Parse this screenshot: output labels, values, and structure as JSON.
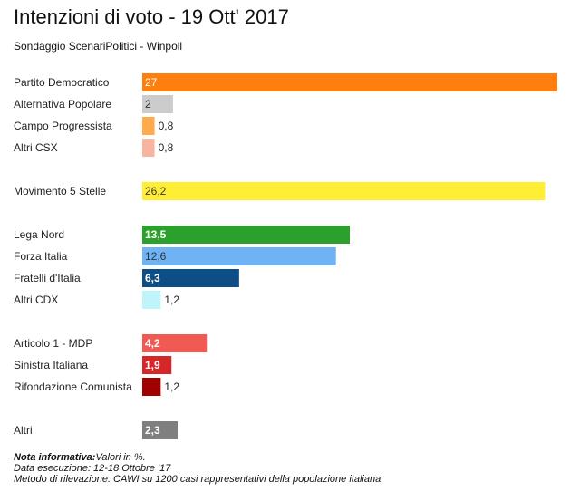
{
  "header": {
    "title": "Intenzioni di voto - 19 Ott' 2017",
    "subtitle": "Sondaggio ScenariPolitici - Winpoll"
  },
  "chart_data": {
    "type": "bar",
    "orientation": "horizontal",
    "title": "Intenzioni di voto - 19 Ott' 2017",
    "xlim": [
      0,
      27
    ],
    "grid": false,
    "legend": "none",
    "bars": [
      {
        "category": "Partito Democratico",
        "value": 27,
        "label": "27",
        "color": "#ff7f0e",
        "group": 0,
        "label_inside": true,
        "label_color": "#ffffff",
        "label_bold": false
      },
      {
        "category": "Alternativa Popolare",
        "value": 2,
        "label": "2",
        "color": "#cccccc",
        "group": 0,
        "label_inside": true,
        "label_color": "#333333",
        "label_bold": false
      },
      {
        "category": "Campo Progressista",
        "value": 0.8,
        "label": "0,8",
        "color": "#ffaa4c",
        "group": 0,
        "label_inside": false,
        "label_color": "#222222",
        "label_bold": false
      },
      {
        "category": "Altri CSX",
        "value": 0.8,
        "label": "0,8",
        "color": "#f9b4a0",
        "group": 0,
        "label_inside": false,
        "label_color": "#222222",
        "label_bold": false
      },
      {
        "category": "Movimento 5 Stelle",
        "value": 26.2,
        "label": "26,2",
        "color": "#ffee33",
        "group": 1,
        "label_inside": true,
        "label_color": "#333333",
        "label_bold": false
      },
      {
        "category": "Lega Nord",
        "value": 13.5,
        "label": "13,5",
        "color": "#2ca02c",
        "group": 2,
        "label_inside": true,
        "label_color": "#ffffff",
        "label_bold": true
      },
      {
        "category": "Forza Italia",
        "value": 12.6,
        "label": "12,6",
        "color": "#6fb3f5",
        "group": 2,
        "label_inside": true,
        "label_color": "#333333",
        "label_bold": false
      },
      {
        "category": "Fratelli d'Italia",
        "value": 6.3,
        "label": "6,3",
        "color": "#0b4f86",
        "group": 2,
        "label_inside": true,
        "label_color": "#ffffff",
        "label_bold": true
      },
      {
        "category": "Altri CDX",
        "value": 1.2,
        "label": "1,2",
        "color": "#bff4fb",
        "group": 2,
        "label_inside": false,
        "label_color": "#222222",
        "label_bold": false
      },
      {
        "category": "Articolo 1 - MDP",
        "value": 4.2,
        "label": "4,2",
        "color": "#f05a52",
        "group": 3,
        "label_inside": true,
        "label_color": "#ffffff",
        "label_bold": true
      },
      {
        "category": "Sinistra Italiana",
        "value": 1.9,
        "label": "1,9",
        "color": "#d62728",
        "group": 3,
        "label_inside": true,
        "label_color": "#ffffff",
        "label_bold": true
      },
      {
        "category": "Rifondazione Comunista",
        "value": 1.2,
        "label": "1,2",
        "color": "#a00000",
        "group": 3,
        "label_inside": false,
        "label_color": "#222222",
        "label_bold": false
      },
      {
        "category": "Altri",
        "value": 2.3,
        "label": "2,3",
        "color": "#7f7f7f",
        "group": 4,
        "label_inside": true,
        "label_color": "#ffffff",
        "label_bold": true
      }
    ]
  },
  "notes": {
    "info_label": "Nota informativa:",
    "info_text": "Valori in %.",
    "date_line": "Data esecuzione: 12-18 Ottobre '17",
    "method_line": "Metodo di rilevazione: CAWI su 1200 casi rappresentativi della popolazione italiana"
  }
}
